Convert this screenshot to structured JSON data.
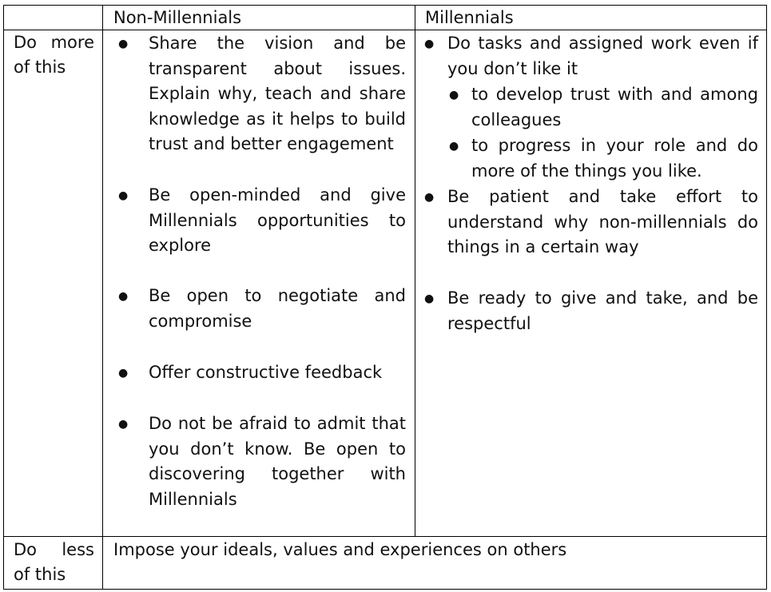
{
  "table": {
    "header": {
      "col1": "Non-Millennials",
      "col2": "Millennials"
    },
    "rows": [
      {
        "label_line1": "Do more",
        "label_line2": "of this",
        "non_millennials": [
          "Share the vision and be transparent about issues. Explain why, teach and share knowledge as it helps to build trust and better engagement",
          "Be open-minded and give Millennials opportunities to explore",
          "Be open to negotiate and compromise",
          "Offer constructive feedback",
          "Do not be afraid to admit that you don’t know. Be open to discovering together with Millennials"
        ],
        "millennials": {
          "item1": "Do tasks and assigned work even if you don’t like it",
          "item1_sub": [
            "to develop trust with and among colleagues",
            "to progress in your role and do more of the things you like."
          ],
          "item2": "Be patient and take effort to understand why non-millennials do things in a certain way",
          "item3": "Be ready to give and take, and be respectful"
        }
      },
      {
        "label_line1": "Do less",
        "label_line2": "of this",
        "merged_text": "Impose your ideals, values and experiences on others"
      }
    ]
  },
  "bullet_char": "●"
}
